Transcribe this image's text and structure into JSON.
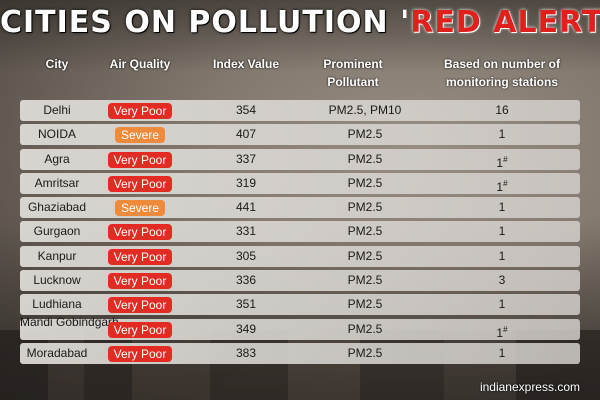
{
  "title": {
    "part1": "CITIES ON POLLUTION",
    "part2": "RED ALERT"
  },
  "headers": {
    "city": "City",
    "air_quality": "Air Quality",
    "index": "Index Value",
    "pollutant": "Prominent Pollutant",
    "stations": "Based on number of monitoring stations"
  },
  "rows": [
    {
      "city": "Delhi",
      "aq": "Very Poor",
      "aq_level": "very-poor",
      "index": "354",
      "pollutant": "PM2.5, PM10",
      "stations": "16",
      "mark": ""
    },
    {
      "city": "NOIDA",
      "aq": "Severe",
      "aq_level": "severe",
      "index": "407",
      "pollutant": "PM2.5",
      "stations": "1",
      "mark": ""
    },
    {
      "city": "Agra",
      "aq": "Very Poor",
      "aq_level": "very-poor",
      "index": "337",
      "pollutant": "PM2.5",
      "stations": "1",
      "mark": "#"
    },
    {
      "city": "Amritsar",
      "aq": "Very Poor",
      "aq_level": "very-poor",
      "index": "319",
      "pollutant": "PM2.5",
      "stations": "1",
      "mark": "#"
    },
    {
      "city": "Ghaziabad",
      "aq": "Severe",
      "aq_level": "severe",
      "index": "441",
      "pollutant": "PM2.5",
      "stations": "1",
      "mark": ""
    },
    {
      "city": "Gurgaon",
      "aq": "Very Poor",
      "aq_level": "very-poor",
      "index": "331",
      "pollutant": "PM2.5",
      "stations": "1",
      "mark": ""
    },
    {
      "city": "Kanpur",
      "aq": "Very Poor",
      "aq_level": "very-poor",
      "index": "305",
      "pollutant": "PM2.5",
      "stations": "1",
      "mark": ""
    },
    {
      "city": "Lucknow",
      "aq": "Very Poor",
      "aq_level": "very-poor",
      "index": "336",
      "pollutant": "PM2.5",
      "stations": "3",
      "mark": ""
    },
    {
      "city": "Ludhiana",
      "aq": "Very Poor",
      "aq_level": "very-poor",
      "index": "351",
      "pollutant": "PM2.5",
      "stations": "1",
      "mark": ""
    },
    {
      "city": "Mandi Gobindgarh",
      "aq": "Very Poor",
      "aq_level": "very-poor",
      "index": "349",
      "pollutant": "PM2.5",
      "stations": "1",
      "mark": "#"
    },
    {
      "city": "Moradabad",
      "aq": "Very Poor",
      "aq_level": "very-poor",
      "index": "383",
      "pollutant": "PM2.5",
      "stations": "1",
      "mark": ""
    }
  ],
  "colors": {
    "very_poor": "#e22b22",
    "severe": "#ee8a3c",
    "title_red": "#e0201c"
  },
  "credit": "indianexpress.com"
}
